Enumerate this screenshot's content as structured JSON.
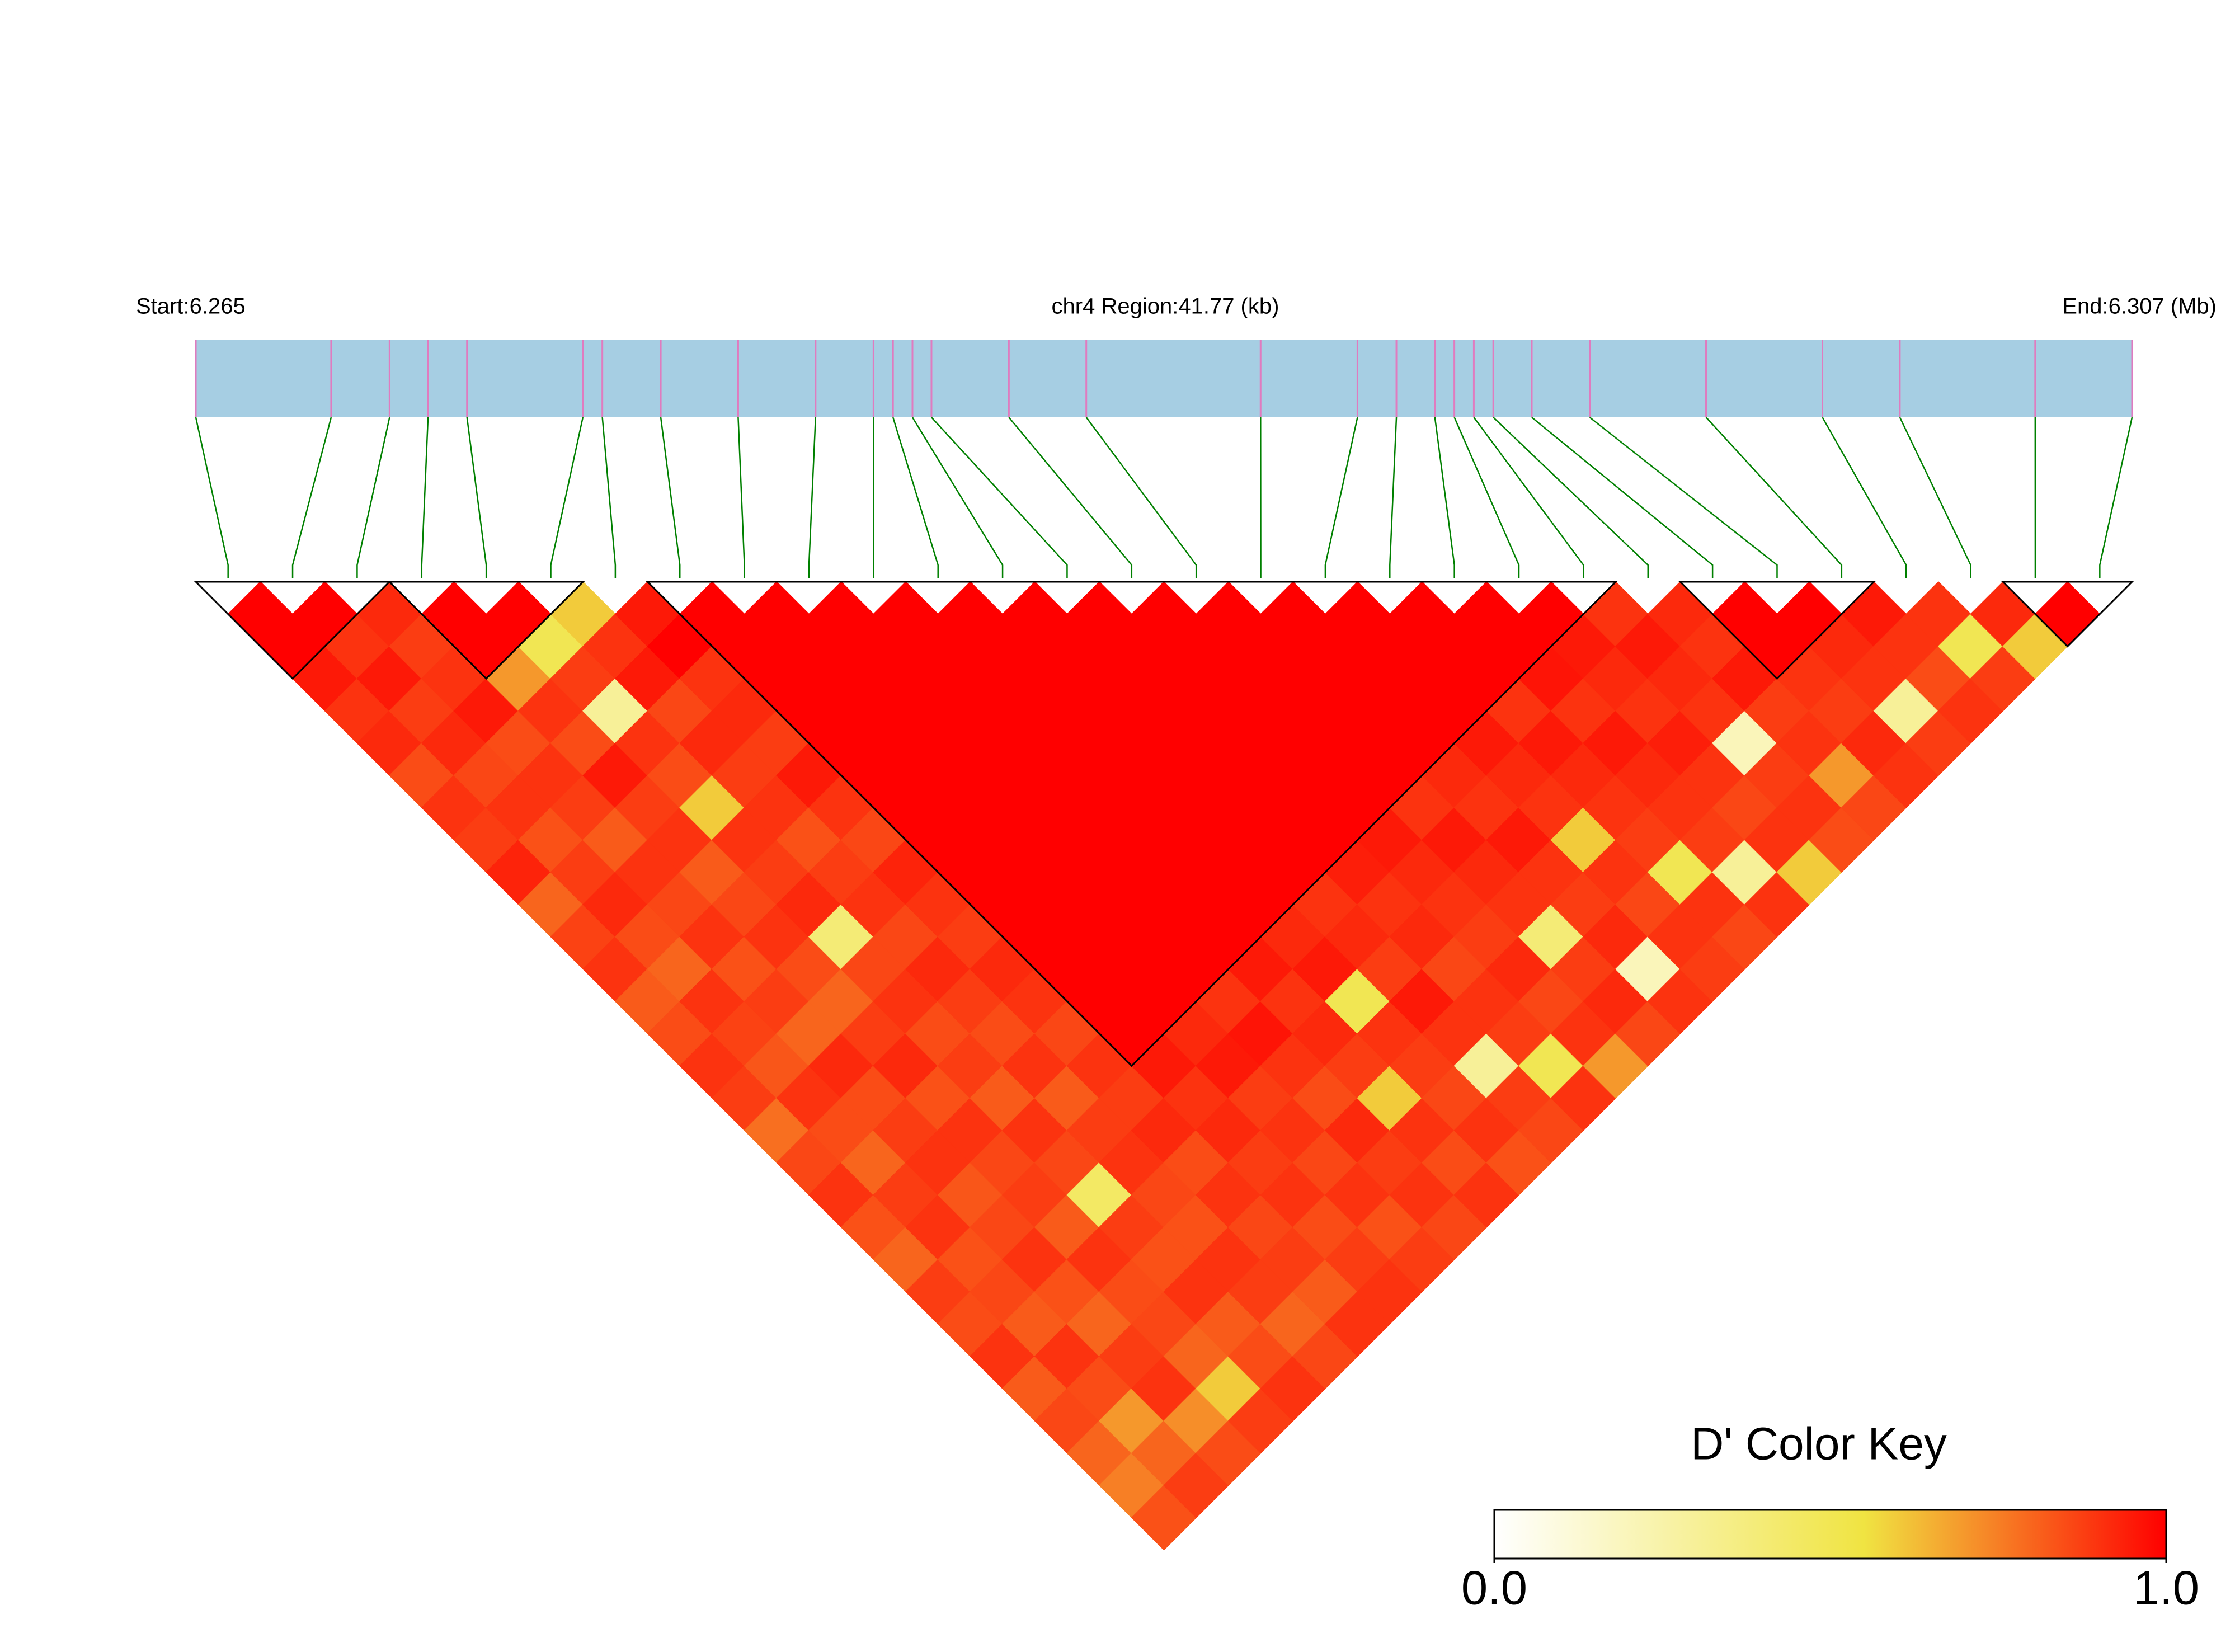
{
  "chart_data": {
    "type": "ld-heatmap",
    "header_left": "Start:6.265",
    "title": "chr4 Region:41.77 (kb)",
    "header_right": "End:6.307 (Mb)",
    "xlim": [
      6.265,
      6.30677
    ],
    "positions": [
      6.265,
      6.26792,
      6.26918,
      6.27001,
      6.27085,
      6.27335,
      6.27377,
      6.27503,
      6.2767,
      6.27837,
      6.27962,
      6.28004,
      6.28046,
      6.28087,
      6.28254,
      6.28421,
      6.28797,
      6.29006,
      6.2909,
      6.29173,
      6.29215,
      6.29257,
      6.29299,
      6.29382,
      6.29507,
      6.29758,
      6.30009,
      6.30176,
      6.30468,
      6.30677
    ],
    "bar_color": "#a6cee3",
    "snp_color": "#e07bbf",
    "link_color": "#008000",
    "values": [
      [
        1,
        1,
        0.95,
        0.9,
        0.92,
        0.85,
        0.9,
        0.88,
        0.93,
        0.8,
        0.87,
        0.9,
        0.82,
        0.85,
        0.9,
        0.88,
        0.78,
        0.86,
        0.9,
        0.84,
        0.8,
        0.88,
        0.85,
        0.9,
        0.82,
        0.86,
        0.8,
        0.75,
        0.84
      ],
      [
        1,
        0.9,
        0.95,
        0.88,
        0.92,
        0.86,
        0.9,
        0.84,
        0.88,
        0.92,
        0.85,
        0.8,
        0.9,
        0.87,
        0.83,
        0.9,
        0.85,
        0.8,
        0.88,
        0.9,
        0.84,
        0.86,
        0.82,
        0.9,
        0.85,
        0.7,
        0.8,
        0.88
      ],
      [
        0.92,
        0.88,
        0.9,
        0.95,
        0.85,
        0.9,
        0.88,
        0.82,
        0.9,
        0.86,
        0.9,
        0.84,
        0.88,
        0.8,
        0.92,
        0.85,
        0.88,
        0.9,
        0.83,
        0.86,
        0.9,
        0.84,
        0.8,
        0.88,
        0.9,
        0.72,
        0.85
      ],
      [
        1,
        1,
        0.7,
        0.9,
        0.85,
        0.95,
        0.88,
        0.9,
        0.82,
        0.86,
        0.9,
        0.85,
        0.8,
        0.88,
        0.92,
        0.84,
        0.9,
        0.86,
        0.88,
        0.82,
        0.9,
        0.85,
        0.86,
        0.8,
        0.6,
        0.88
      ],
      [
        1,
        0.5,
        0.88,
        0.3,
        0.9,
        0.85,
        0.6,
        0.9,
        0.88,
        0.92,
        0.4,
        0.86,
        0.9,
        0.85,
        0.88,
        0.82,
        0.9,
        0.86,
        0.45,
        0.88,
        0.84,
        0.9,
        0.82,
        0.85,
        0.9
      ],
      [
        0.6,
        0.9,
        0.95,
        0.86,
        0.92,
        0.88,
        0.9,
        0.84,
        0.88,
        0.9,
        0.86,
        0.92,
        0.88,
        0.85,
        0.9,
        0.82,
        0.88,
        0.9,
        0.86,
        0.84,
        0.9,
        0.88,
        0.8,
        0.86
      ],
      [
        0.95,
        1,
        0.9,
        0.92,
        0.88,
        0.95,
        0.9,
        0.86,
        0.93,
        0.9,
        0.88,
        0.92,
        0.9,
        0.86,
        0.9,
        0.88,
        0.92,
        0.85,
        0.9,
        0.86,
        0.88,
        0.82,
        0.9
      ],
      [
        1,
        1,
        1,
        1,
        1,
        1,
        1,
        1,
        1,
        1,
        1,
        1,
        1,
        1,
        0.95,
        0.9,
        0.92,
        0.88,
        0.9,
        0.85,
        0.88,
        0.9
      ],
      [
        1,
        1,
        1,
        1,
        1,
        1,
        1,
        1,
        1,
        1,
        1,
        1,
        1,
        0.92,
        0.95,
        0.88,
        0.9,
        0.86,
        0.9,
        0.84,
        0.88
      ],
      [
        1,
        1,
        1,
        1,
        1,
        1,
        1,
        1,
        1,
        1,
        1,
        1,
        0.9,
        0.96,
        0.9,
        0.85,
        0.92,
        0.88,
        0.9,
        0.86
      ],
      [
        1,
        1,
        1,
        1,
        1,
        1,
        1,
        1,
        1,
        1,
        1,
        0.95,
        0.9,
        0.92,
        0.88,
        0.6,
        0.9,
        0.85,
        0.9
      ],
      [
        1,
        1,
        1,
        1,
        1,
        1,
        1,
        1,
        1,
        1,
        0.92,
        0.95,
        0.5,
        0.9,
        0.88,
        0.86,
        0.9,
        0.84
      ],
      [
        1,
        1,
        1,
        1,
        1,
        1,
        1,
        1,
        1,
        0.9,
        0.92,
        0.88,
        0.95,
        0.9,
        0.3,
        0.88,
        0.86
      ],
      [
        1,
        1,
        1,
        1,
        1,
        1,
        1,
        1,
        0.94,
        0.9,
        0.92,
        0.86,
        0.9,
        0.88,
        0.5,
        0.9
      ],
      [
        1,
        1,
        1,
        1,
        1,
        1,
        1,
        0.95,
        0.92,
        0.9,
        0.88,
        0.92,
        0.86,
        0.9,
        0.7
      ],
      [
        1,
        1,
        1,
        1,
        1,
        1,
        0.9,
        0.95,
        0.92,
        0.9,
        0.4,
        0.88,
        0.92,
        0.86
      ],
      [
        1,
        1,
        1,
        1,
        1,
        0.92,
        0.9,
        0.95,
        0.9,
        0.88,
        0.92,
        0.2,
        0.9
      ],
      [
        1,
        1,
        1,
        1,
        0.95,
        0.92,
        0.9,
        0.6,
        0.9,
        0.86,
        0.9,
        0.88
      ],
      [
        1,
        1,
        1,
        0.9,
        0.95,
        0.92,
        0.9,
        0.88,
        0.5,
        0.9,
        0.86
      ],
      [
        1,
        1,
        0.96,
        0.9,
        0.95,
        0.92,
        0.9,
        0.88,
        0.3,
        0.9
      ],
      [
        1,
        0.95,
        0.92,
        0.9,
        0.94,
        0.9,
        0.86,
        0.9,
        0.6
      ],
      [
        0.9,
        0.95,
        0.92,
        0.9,
        0.2,
        0.88,
        0.9,
        0.85
      ],
      [
        0.92,
        0.9,
        0.95,
        0.88,
        0.9,
        0.7,
        0.86
      ],
      [
        1,
        1,
        0.9,
        0.88,
        0.92,
        0.9
      ],
      [
        1,
        0.92,
        0.9,
        0.3,
        0.88
      ],
      [
        0.95,
        0.9,
        0.85,
        0.9
      ],
      [
        0.9,
        0.5,
        0.88
      ],
      [
        0.92,
        0.6
      ],
      [
        1
      ]
    ],
    "blocks": [
      [
        0,
        2
      ],
      [
        3,
        5
      ],
      [
        7,
        21
      ],
      [
        23,
        25
      ],
      [
        28,
        29
      ]
    ],
    "color_key": {
      "title": "D' Color Key",
      "lim": [
        0,
        1
      ],
      "ticks": [
        {
          "value": 0,
          "label": "0.0"
        },
        {
          "value": 1,
          "label": "1.0"
        }
      ],
      "stops": [
        0,
        0.55,
        1
      ],
      "colors": [
        "#ffffff",
        "#f0e442",
        "#ff0000"
      ]
    }
  }
}
